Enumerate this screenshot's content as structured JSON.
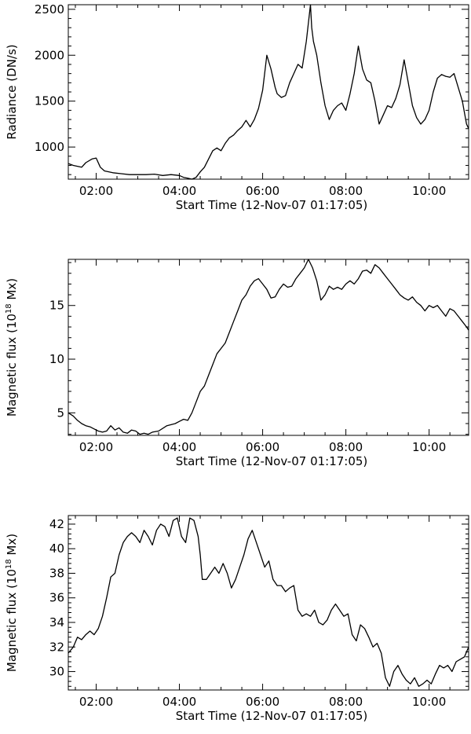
{
  "chart_data": [
    {
      "type": "line",
      "xlabel": "Start Time (12-Nov-07 01:17:05)",
      "ylabel": "Radiance (DN/s)",
      "ylabel_sup": "",
      "ylabel_after": "",
      "xlim": [
        1.33,
        10.95
      ],
      "ylim": [
        650,
        2550
      ],
      "xticks": [
        2,
        4,
        6,
        8,
        10
      ],
      "xticklabels": [
        "02:00",
        "04:00",
        "06:00",
        "08:00",
        "10:00"
      ],
      "yticks": [
        1000,
        1500,
        2000,
        2500
      ],
      "yticklabels": [
        "1000",
        "1500",
        "2000",
        "2500"
      ],
      "series": [
        {
          "x": [
            1.33,
            1.45,
            1.55,
            1.65,
            1.75,
            1.9,
            2.0,
            2.1,
            2.2,
            2.4,
            2.6,
            2.8,
            3.0,
            3.2,
            3.4,
            3.6,
            3.8,
            4.0,
            4.1,
            4.2,
            4.3,
            4.4,
            4.5,
            4.6,
            4.7,
            4.8,
            4.9,
            5.0,
            5.1,
            5.2,
            5.3,
            5.4,
            5.5,
            5.6,
            5.7,
            5.8,
            5.9,
            6.0,
            6.1,
            6.2,
            6.3,
            6.35,
            6.45,
            6.55,
            6.65,
            6.75,
            6.85,
            6.95,
            7.05,
            7.15,
            7.18,
            7.22,
            7.3,
            7.4,
            7.5,
            7.6,
            7.7,
            7.8,
            7.9,
            8.0,
            8.1,
            8.2,
            8.3,
            8.4,
            8.5,
            8.6,
            8.7,
            8.8,
            8.9,
            9.0,
            9.1,
            9.2,
            9.3,
            9.4,
            9.5,
            9.6,
            9.7,
            9.8,
            9.9,
            10.0,
            10.1,
            10.2,
            10.3,
            10.4,
            10.5,
            10.6,
            10.7,
            10.8,
            10.9,
            10.95
          ],
          "y": [
            820,
            800,
            790,
            780,
            830,
            870,
            880,
            780,
            740,
            720,
            710,
            700,
            700,
            700,
            705,
            690,
            700,
            690,
            670,
            660,
            650,
            670,
            730,
            780,
            870,
            960,
            990,
            960,
            1040,
            1100,
            1130,
            1180,
            1220,
            1290,
            1220,
            1300,
            1420,
            1620,
            2000,
            1850,
            1650,
            1580,
            1540,
            1560,
            1700,
            1800,
            1900,
            1860,
            2150,
            2550,
            2300,
            2150,
            2000,
            1700,
            1450,
            1300,
            1400,
            1450,
            1480,
            1400,
            1580,
            1800,
            2100,
            1850,
            1730,
            1700,
            1500,
            1250,
            1350,
            1450,
            1430,
            1530,
            1680,
            1950,
            1700,
            1450,
            1320,
            1250,
            1300,
            1400,
            1600,
            1750,
            1790,
            1770,
            1760,
            1800,
            1650,
            1500,
            1250,
            1200
          ]
        }
      ]
    },
    {
      "type": "line",
      "xlabel": "Start Time (12-Nov-07 01:17:05)",
      "ylabel": "Magnetic flux (10",
      "ylabel_sup": "18",
      "ylabel_after": " Mx)",
      "xlim": [
        1.33,
        10.95
      ],
      "ylim": [
        2.9,
        19.3
      ],
      "xticks": [
        2,
        4,
        6,
        8,
        10
      ],
      "xticklabels": [
        "02:00",
        "04:00",
        "06:00",
        "08:00",
        "10:00"
      ],
      "yticks": [
        5,
        10,
        15
      ],
      "yticklabels": [
        "5",
        "10",
        "15"
      ],
      "series": [
        {
          "x": [
            1.33,
            1.45,
            1.55,
            1.65,
            1.75,
            1.85,
            1.95,
            2.05,
            2.15,
            2.25,
            2.35,
            2.45,
            2.55,
            2.65,
            2.75,
            2.85,
            2.95,
            3.05,
            3.15,
            3.25,
            3.35,
            3.5,
            3.7,
            3.9,
            4.0,
            4.1,
            4.2,
            4.3,
            4.4,
            4.5,
            4.6,
            4.7,
            4.8,
            4.9,
            5.0,
            5.1,
            5.2,
            5.3,
            5.4,
            5.5,
            5.6,
            5.7,
            5.8,
            5.9,
            6.0,
            6.1,
            6.2,
            6.3,
            6.4,
            6.5,
            6.6,
            6.7,
            6.8,
            6.9,
            7.0,
            7.1,
            7.2,
            7.3,
            7.4,
            7.5,
            7.6,
            7.7,
            7.8,
            7.9,
            8.0,
            8.1,
            8.2,
            8.3,
            8.4,
            8.5,
            8.6,
            8.7,
            8.8,
            8.9,
            9.0,
            9.1,
            9.2,
            9.3,
            9.4,
            9.5,
            9.6,
            9.7,
            9.8,
            9.9,
            10.0,
            10.1,
            10.2,
            10.3,
            10.4,
            10.5,
            10.6,
            10.7,
            10.8,
            10.9,
            10.95
          ],
          "y": [
            5.0,
            4.7,
            4.3,
            4.0,
            3.8,
            3.7,
            3.5,
            3.3,
            3.2,
            3.3,
            3.8,
            3.4,
            3.6,
            3.2,
            3.1,
            3.4,
            3.3,
            3.0,
            3.1,
            3.0,
            3.2,
            3.3,
            3.8,
            4.0,
            4.2,
            4.4,
            4.3,
            5.0,
            6.0,
            7.0,
            7.5,
            8.5,
            9.5,
            10.5,
            11.0,
            11.5,
            12.5,
            13.5,
            14.5,
            15.5,
            16.0,
            16.8,
            17.3,
            17.5,
            17.0,
            16.5,
            15.7,
            15.8,
            16.5,
            17.0,
            16.7,
            16.8,
            17.5,
            18.0,
            18.5,
            19.3,
            18.5,
            17.3,
            15.5,
            16.0,
            16.8,
            16.5,
            16.7,
            16.5,
            17.0,
            17.3,
            17.0,
            17.5,
            18.2,
            18.3,
            18.0,
            18.8,
            18.5,
            18.0,
            17.5,
            17.0,
            16.5,
            16.0,
            15.7,
            15.5,
            15.8,
            15.3,
            15.0,
            14.5,
            15.0,
            14.8,
            15.0,
            14.5,
            14.0,
            14.7,
            14.5,
            14.0,
            13.5,
            13.0,
            12.7
          ]
        }
      ]
    },
    {
      "type": "line",
      "xlabel": "Start Time (12-Nov-07 01:17:05)",
      "ylabel": "Magnetic flux (10",
      "ylabel_sup": "18",
      "ylabel_after": " Mx)",
      "xlim": [
        1.33,
        10.95
      ],
      "ylim": [
        28.5,
        42.7
      ],
      "xticks": [
        2,
        4,
        6,
        8,
        10
      ],
      "xticklabels": [
        "02:00",
        "04:00",
        "06:00",
        "08:00",
        "10:00"
      ],
      "yticks": [
        30,
        32,
        34,
        36,
        38,
        40,
        42
      ],
      "yticklabels": [
        "30",
        "32",
        "34",
        "36",
        "38",
        "40",
        "42"
      ],
      "series": [
        {
          "x": [
            1.33,
            1.45,
            1.55,
            1.65,
            1.75,
            1.85,
            1.95,
            2.05,
            2.15,
            2.25,
            2.35,
            2.45,
            2.55,
            2.65,
            2.75,
            2.85,
            2.95,
            3.05,
            3.15,
            3.25,
            3.35,
            3.45,
            3.55,
            3.65,
            3.75,
            3.85,
            3.95,
            4.05,
            4.15,
            4.25,
            4.35,
            4.45,
            4.5,
            4.55,
            4.65,
            4.75,
            4.85,
            4.95,
            5.05,
            5.15,
            5.25,
            5.35,
            5.45,
            5.55,
            5.65,
            5.75,
            5.85,
            5.95,
            6.05,
            6.15,
            6.25,
            6.35,
            6.45,
            6.55,
            6.65,
            6.75,
            6.85,
            6.95,
            7.05,
            7.15,
            7.25,
            7.35,
            7.45,
            7.55,
            7.65,
            7.75,
            7.85,
            7.95,
            8.05,
            8.15,
            8.25,
            8.35,
            8.45,
            8.55,
            8.65,
            8.75,
            8.85,
            8.95,
            9.05,
            9.15,
            9.25,
            9.35,
            9.45,
            9.55,
            9.65,
            9.75,
            9.85,
            9.95,
            10.05,
            10.15,
            10.25,
            10.35,
            10.45,
            10.55,
            10.65,
            10.75,
            10.85,
            10.95
          ],
          "y": [
            31.5,
            32.0,
            32.8,
            32.6,
            33.0,
            33.3,
            33.0,
            33.5,
            34.5,
            36.0,
            37.7,
            38.0,
            39.5,
            40.5,
            41.0,
            41.3,
            41.0,
            40.5,
            41.5,
            41.0,
            40.3,
            41.5,
            42.0,
            41.8,
            41.0,
            42.3,
            42.5,
            41.0,
            40.5,
            42.5,
            42.3,
            41.0,
            39.5,
            37.5,
            37.5,
            38.0,
            38.5,
            38.0,
            38.8,
            38.0,
            36.8,
            37.5,
            38.5,
            39.5,
            40.8,
            41.5,
            40.5,
            39.5,
            38.5,
            39.0,
            37.5,
            37.0,
            37.0,
            36.5,
            36.8,
            37.0,
            35.0,
            34.5,
            34.7,
            34.5,
            35.0,
            34.0,
            33.8,
            34.2,
            35.0,
            35.5,
            35.0,
            34.5,
            34.7,
            33.0,
            32.5,
            33.8,
            33.5,
            32.8,
            32.0,
            32.3,
            31.5,
            29.5,
            28.8,
            30.0,
            30.5,
            29.8,
            29.3,
            29.0,
            29.5,
            28.8,
            29.0,
            29.3,
            29.0,
            29.8,
            30.5,
            30.3,
            30.5,
            30.0,
            30.8,
            31.0,
            31.2,
            32.0
          ]
        }
      ]
    }
  ]
}
